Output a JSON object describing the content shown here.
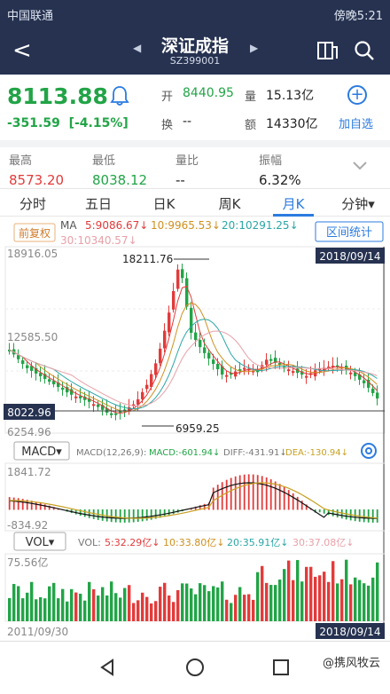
{
  "status_bar": {
    "carrier": "中国联通",
    "time": "傍晚5:21"
  },
  "nav": {
    "title": "深证成指",
    "code": "SZ399001",
    "prev_glyph": "◀",
    "next_glyph": "▶",
    "back_glyph": "<"
  },
  "quote": {
    "price": "8113.88",
    "change": "-351.59",
    "change_pct": "[-4.15%]",
    "open_label": "开",
    "open": "8440.95",
    "volume_label": "量",
    "volume": "15.13亿",
    "turnover_label": "换",
    "turnover": "--",
    "amount_label": "额",
    "amount": "14330亿",
    "add_fav": "加自选"
  },
  "stats": [
    {
      "label": "最高",
      "value": "8573.20",
      "color": "#e23b3b"
    },
    {
      "label": "最低",
      "value": "8038.12",
      "color": "#22a447"
    },
    {
      "label": "量比",
      "value": "--",
      "color": "#333333"
    },
    {
      "label": "振幅",
      "value": "6.32%",
      "color": "#333333"
    }
  ],
  "tabs": [
    "分时",
    "五日",
    "日K",
    "周K",
    "月K",
    "分钟▾"
  ],
  "active_tab": "月K",
  "chart": {
    "fq_button": "前复权",
    "ma_label": "MA",
    "ma5": "5:9086.67↓",
    "ma10": "10:9965.53↓",
    "ma20": "20:10291.25↓",
    "ma30": "30:10340.57↓",
    "range_button": "区间统计",
    "y_top": "18916.05",
    "y_mid": "12585.50",
    "y_bottom": "6254.96",
    "high_marker": "18211.76",
    "low_marker": "6959.25",
    "current_tag": "8022.96",
    "date_tag_top": "2018/09/14",
    "macd_button": "MACD▾",
    "macd_params": "MACD(12,26,9):",
    "macd_value": "MACD:-601.94↓",
    "diff_value": "DIFF:-431.91↓",
    "dea_value": "DEA:-130.94↓",
    "macd_top": "1841.72",
    "macd_bottom": "-834.92",
    "vol_button": "VOL▾",
    "vol_label": "VOL:",
    "vol5": "5:32.29亿↓",
    "vol10": "10:33.80亿↓",
    "vol20": "20:35.91亿↓",
    "vol30": "30:37.08亿↓",
    "vol_top": "75.56亿",
    "date_start": "2011/09/30",
    "date_end": "2018/09/14"
  },
  "watermark": "@携风牧云",
  "colors": {
    "up": "#e23b3b",
    "down": "#22a447",
    "accent": "#2b7be0",
    "nav_bg": "#263250"
  }
}
